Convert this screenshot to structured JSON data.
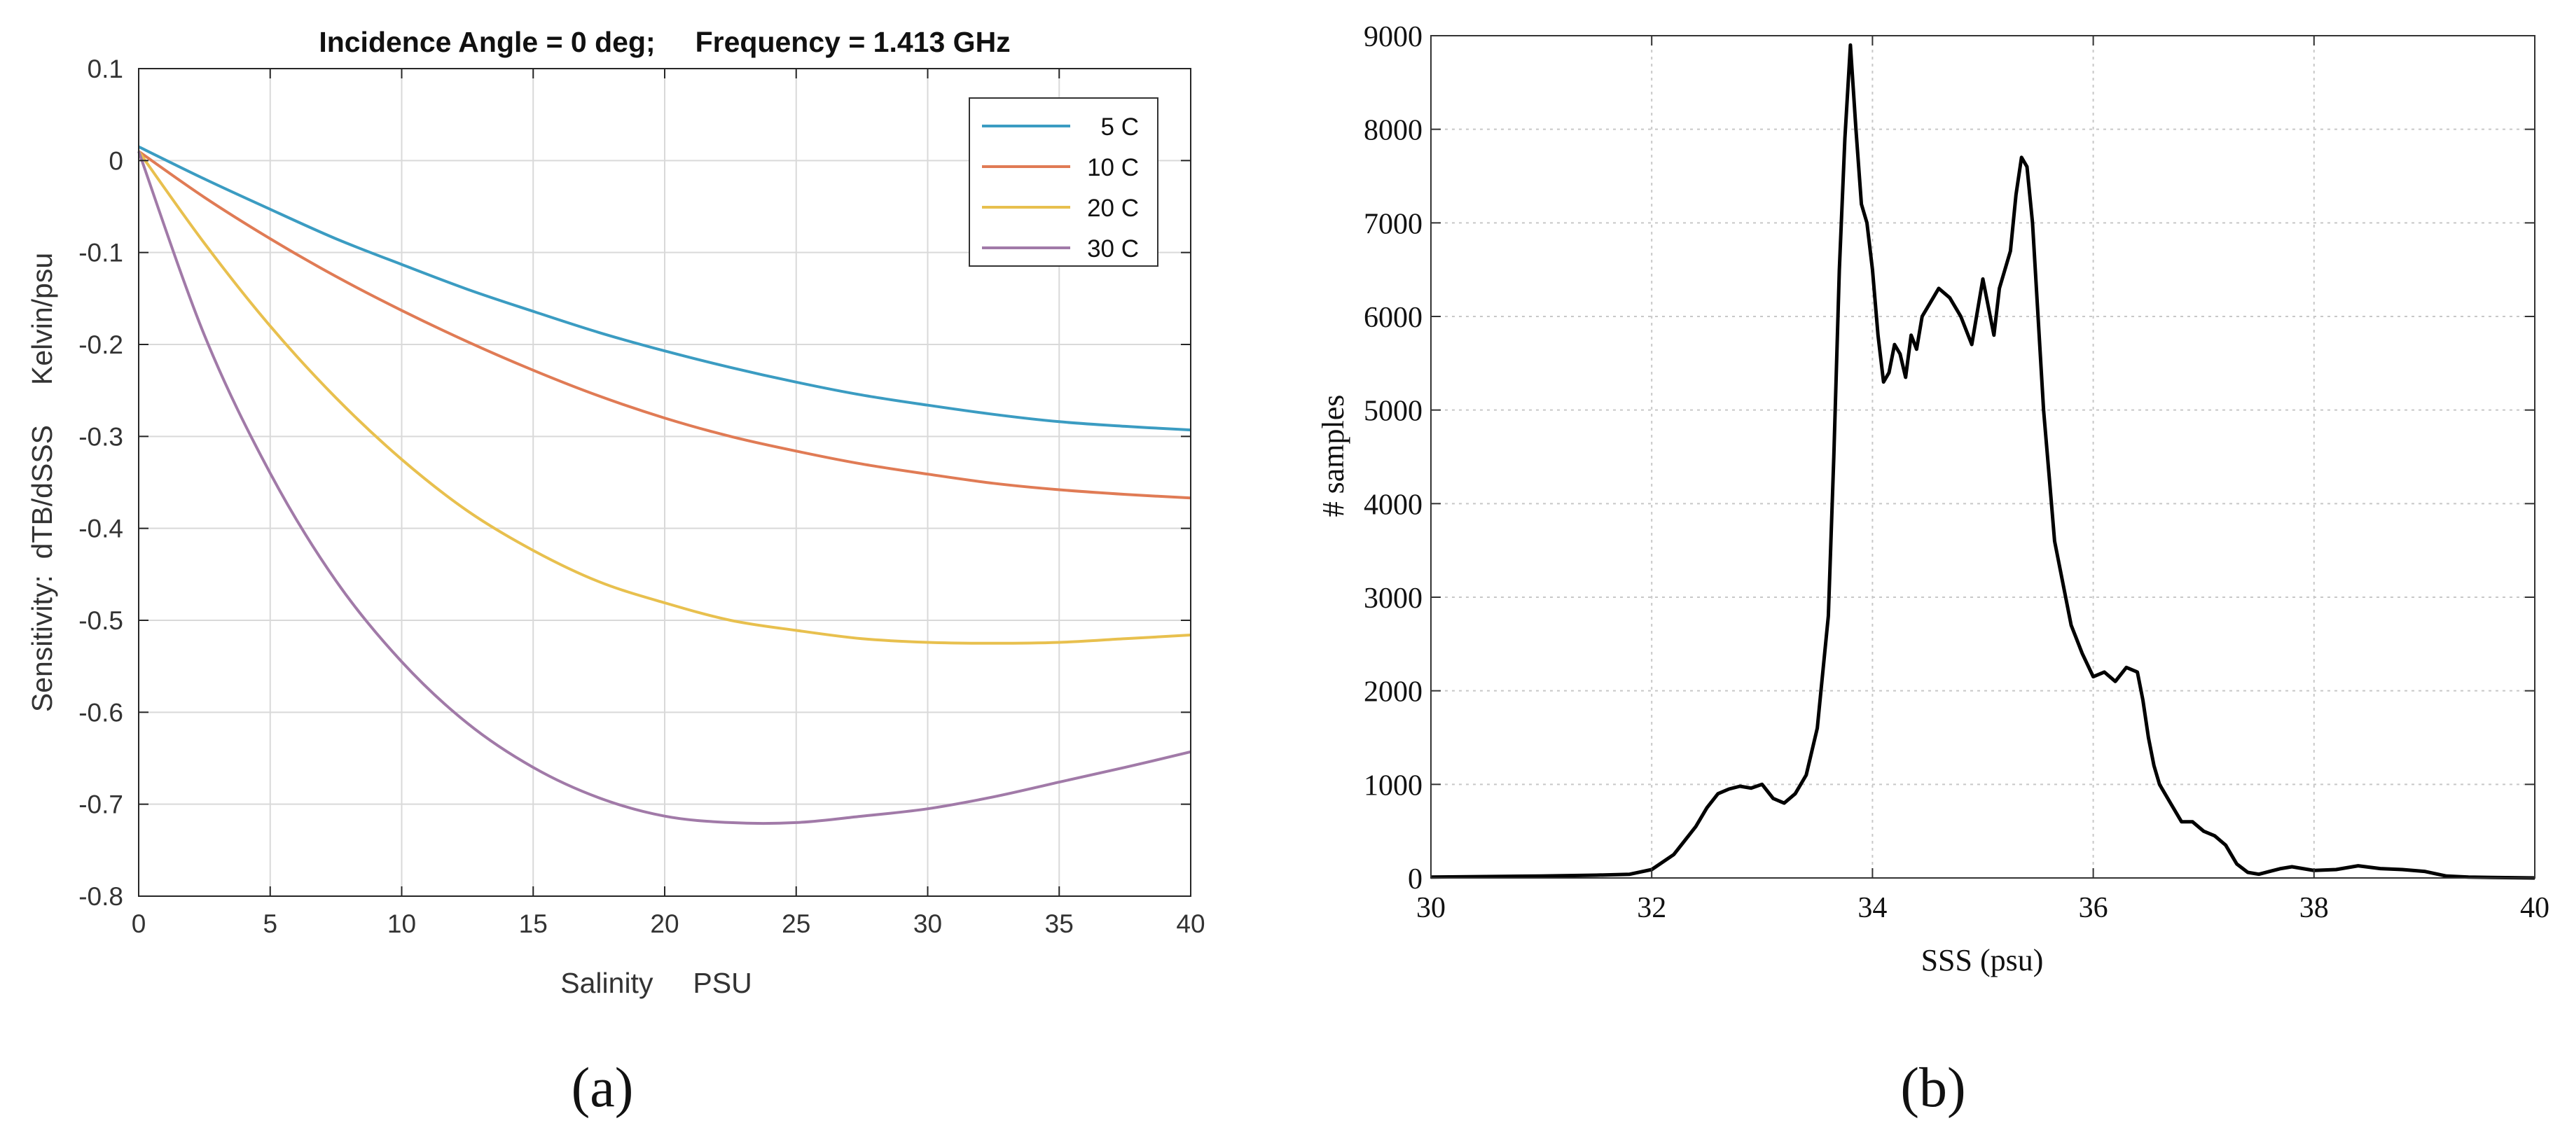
{
  "chart_data": [
    {
      "type": "line",
      "title": "Incidence Angle = 0 deg;     Frequency = 1.413 GHz",
      "xlabel": "Salinity     PSU",
      "ylabel": "Sensitivity:  dTB/dSSS     Kelvin/psu",
      "xlim": [
        0,
        40
      ],
      "ylim": [
        -0.8,
        0.1
      ],
      "xticks": [
        "0",
        "5",
        "10",
        "15",
        "20",
        "25",
        "30",
        "35",
        "40"
      ],
      "yticks": [
        "0.1",
        "0",
        "-0.1",
        "-0.2",
        "-0.3",
        "-0.4",
        "-0.5",
        "-0.6",
        "-0.7",
        "-0.8"
      ],
      "grid": true,
      "legend_position": "top-right",
      "x": [
        0,
        2.5,
        5,
        7.5,
        10,
        12.5,
        15,
        17.5,
        20,
        22.5,
        25,
        27.5,
        30,
        32.5,
        35,
        37.5,
        40
      ],
      "series": [
        {
          "name": "5 C",
          "color": "#3b9cc2",
          "values": [
            0.015,
            -0.02,
            -0.053,
            -0.085,
            -0.113,
            -0.14,
            -0.164,
            -0.187,
            -0.207,
            -0.225,
            -0.241,
            -0.255,
            -0.266,
            -0.276,
            -0.284,
            -0.289,
            -0.293
          ]
        },
        {
          "name": "10 C",
          "color": "#e07b55",
          "values": [
            0.01,
            -0.04,
            -0.085,
            -0.126,
            -0.163,
            -0.197,
            -0.228,
            -0.256,
            -0.28,
            -0.3,
            -0.316,
            -0.33,
            -0.341,
            -0.351,
            -0.358,
            -0.363,
            -0.367
          ]
        },
        {
          "name": "20 C",
          "color": "#e8c04e",
          "values": [
            0.01,
            -0.09,
            -0.18,
            -0.258,
            -0.325,
            -0.381,
            -0.424,
            -0.458,
            -0.481,
            -0.5,
            -0.511,
            -0.52,
            -0.524,
            -0.525,
            -0.524,
            -0.52,
            -0.516
          ]
        },
        {
          "name": "30 C",
          "color": "#a17aa8",
          "values": [
            0.01,
            -0.19,
            -0.34,
            -0.457,
            -0.545,
            -0.612,
            -0.66,
            -0.693,
            -0.713,
            -0.72,
            -0.72,
            -0.713,
            -0.705,
            -0.692,
            -0.676,
            -0.66,
            -0.643
          ]
        }
      ],
      "panel_label": "(a)"
    },
    {
      "type": "line",
      "title": "",
      "xlabel": "SSS (psu)",
      "ylabel": "# samples",
      "xlim": [
        30,
        40
      ],
      "ylim": [
        0,
        9000
      ],
      "xticks": [
        "30",
        "32",
        "34",
        "36",
        "38",
        "40"
      ],
      "yticks": [
        "9000",
        "8000",
        "7000",
        "6000",
        "5000",
        "4000",
        "3000",
        "2000",
        "1000",
        "0"
      ],
      "grid": true,
      "series": [
        {
          "name": "# samples",
          "color": "#000000",
          "x": [
            30,
            30.5,
            31,
            31.5,
            31.8,
            32,
            32.2,
            32.4,
            32.5,
            32.6,
            32.7,
            32.8,
            32.9,
            33,
            33.1,
            33.2,
            33.3,
            33.4,
            33.5,
            33.6,
            33.65,
            33.7,
            33.75,
            33.8,
            33.85,
            33.9,
            33.95,
            34,
            34.05,
            34.1,
            34.15,
            34.2,
            34.25,
            34.3,
            34.35,
            34.4,
            34.45,
            34.5,
            34.55,
            34.6,
            34.7,
            34.8,
            34.9,
            35,
            35.05,
            35.1,
            35.15,
            35.2,
            35.25,
            35.3,
            35.35,
            35.4,
            35.45,
            35.5,
            35.55,
            35.6,
            35.65,
            35.7,
            35.75,
            35.8,
            35.85,
            35.9,
            36,
            36.1,
            36.2,
            36.3,
            36.4,
            36.45,
            36.5,
            36.55,
            36.6,
            36.7,
            36.8,
            36.9,
            37,
            37.1,
            37.2,
            37.3,
            37.4,
            37.5,
            37.6,
            37.7,
            37.8,
            38,
            38.2,
            38.4,
            38.6,
            38.8,
            39,
            39.2,
            39.4,
            39.6,
            40
          ],
          "values": [
            10,
            15,
            20,
            30,
            40,
            90,
            250,
            550,
            750,
            900,
            950,
            980,
            960,
            1000,
            850,
            800,
            900,
            1100,
            1600,
            2800,
            4500,
            6500,
            7900,
            8900,
            8000,
            7200,
            7000,
            6500,
            5800,
            5300,
            5400,
            5700,
            5600,
            5350,
            5800,
            5650,
            6000,
            6100,
            6200,
            6300,
            6200,
            6000,
            5700,
            6400,
            6100,
            5800,
            6300,
            6500,
            6700,
            7300,
            7700,
            7600,
            7000,
            6000,
            5000,
            4300,
            3600,
            3300,
            3000,
            2700,
            2550,
            2400,
            2150,
            2200,
            2100,
            2250,
            2200,
            1900,
            1500,
            1200,
            1000,
            800,
            600,
            600,
            500,
            450,
            350,
            150,
            60,
            40,
            70,
            100,
            120,
            80,
            90,
            130,
            100,
            90,
            70,
            20,
            10,
            5,
            0
          ]
        }
      ],
      "panel_label": "(b)"
    }
  ]
}
